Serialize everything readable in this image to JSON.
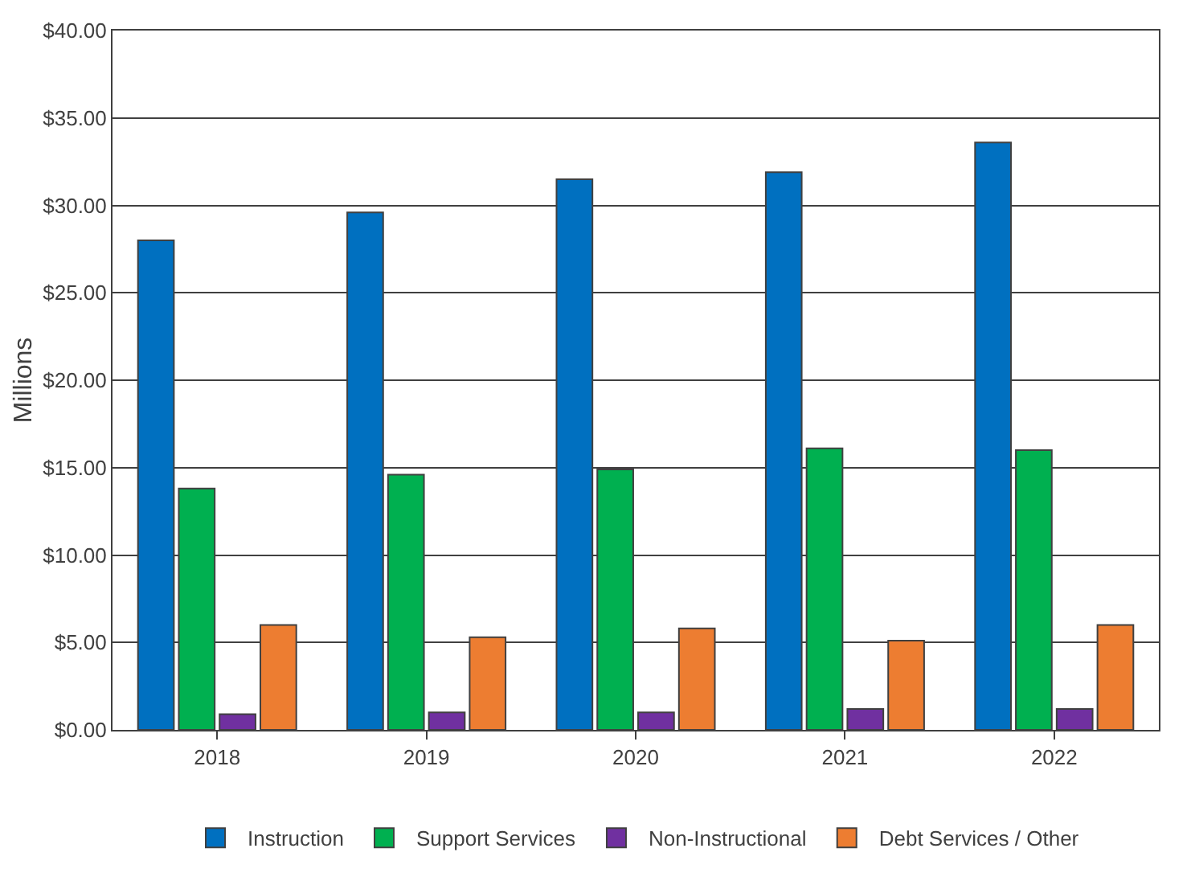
{
  "chart_data": {
    "type": "bar",
    "ylabel": "Millions",
    "categories": [
      "2018",
      "2019",
      "2020",
      "2021",
      "2022"
    ],
    "series": [
      {
        "name": "Instruction",
        "color": "#0070c0",
        "values": [
          28.0,
          29.6,
          31.5,
          31.9,
          33.6
        ]
      },
      {
        "name": "Support Services",
        "color": "#00b050",
        "values": [
          13.8,
          14.6,
          14.9,
          16.1,
          16.0
        ]
      },
      {
        "name": "Non-Instructional",
        "color": "#7030a0",
        "values": [
          0.9,
          1.0,
          1.0,
          1.2,
          1.2
        ]
      },
      {
        "name": "Debt Services / Other",
        "color": "#ed7d31",
        "values": [
          6.0,
          5.3,
          5.8,
          5.1,
          6.0
        ]
      }
    ],
    "ylim": [
      0,
      40
    ],
    "yticks": [
      {
        "value": 0,
        "label": "$0.00"
      },
      {
        "value": 5,
        "label": "$5.00"
      },
      {
        "value": 10,
        "label": "$10.00"
      },
      {
        "value": 15,
        "label": "$15.00"
      },
      {
        "value": 20,
        "label": "$20.00"
      },
      {
        "value": 25,
        "label": "$25.00"
      },
      {
        "value": 30,
        "label": "$30.00"
      },
      {
        "value": 35,
        "label": "$35.00"
      },
      {
        "value": 40,
        "label": "$40.00"
      }
    ],
    "grid": "y",
    "legend": "bottom"
  }
}
